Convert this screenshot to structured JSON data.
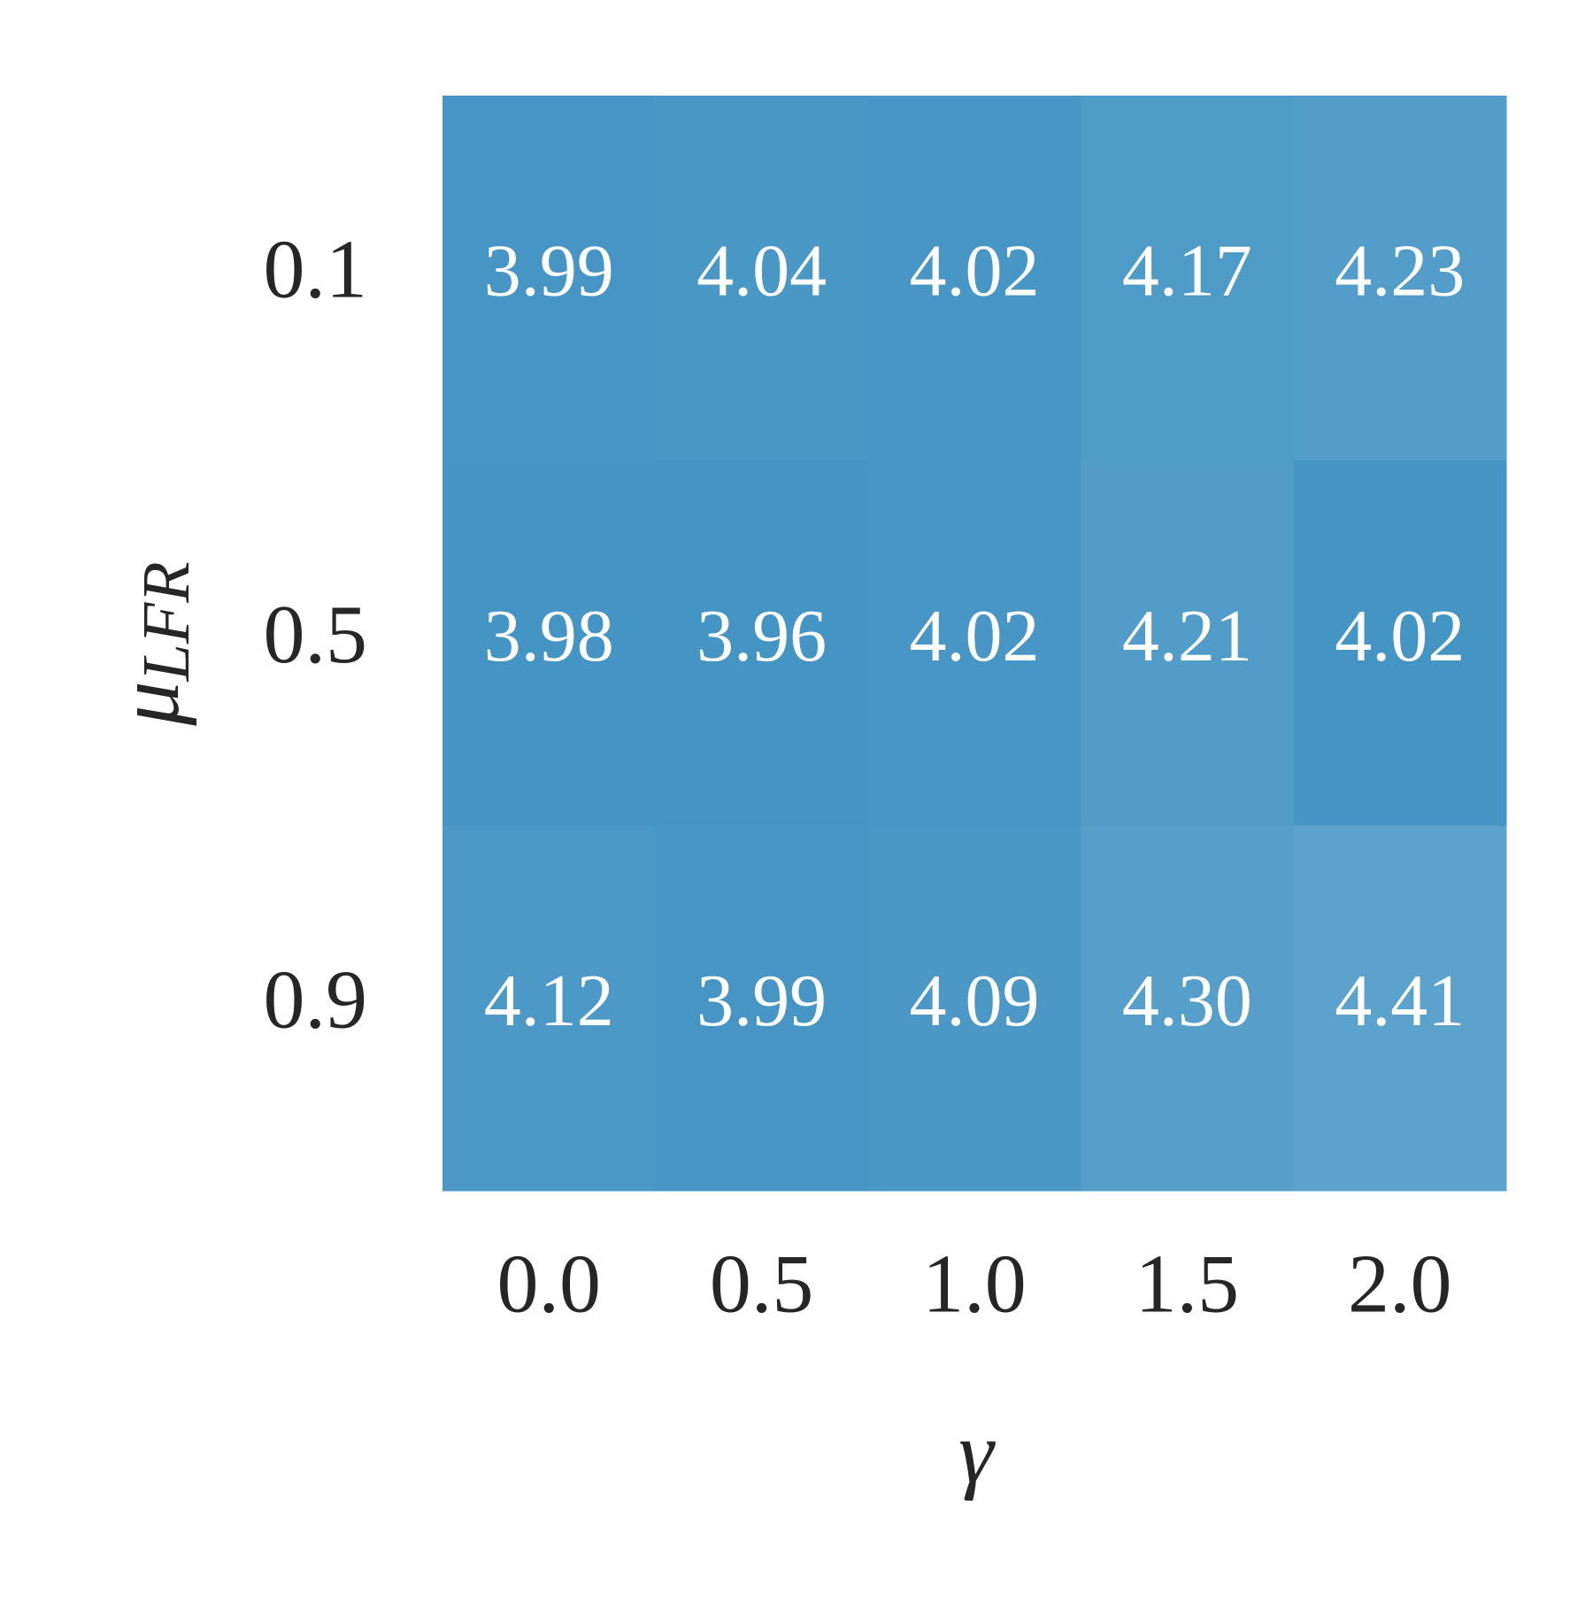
{
  "chart_data": {
    "type": "heatmap",
    "x_label": "γ",
    "y_label": {
      "symbol": "μ",
      "subscript": "LFR"
    },
    "x_categories": [
      "0.0",
      "0.5",
      "1.0",
      "1.5",
      "2.0"
    ],
    "y_categories": [
      "0.1",
      "0.5",
      "0.9"
    ],
    "values": [
      [
        3.99,
        4.04,
        4.02,
        4.17,
        4.23
      ],
      [
        3.98,
        3.96,
        4.02,
        4.21,
        4.02
      ],
      [
        4.12,
        3.99,
        4.09,
        4.3,
        4.41
      ]
    ],
    "value_labels": [
      [
        "3.99",
        "4.04",
        "4.02",
        "4.17",
        "4.23"
      ],
      [
        "3.98",
        "3.96",
        "4.02",
        "4.21",
        "4.02"
      ],
      [
        "4.12",
        "3.99",
        "4.09",
        "4.30",
        "4.41"
      ]
    ],
    "colors": [
      [
        "#4695c5",
        "#4897c5",
        "#4796c5",
        "#4f9bc8",
        "#529dc9"
      ],
      [
        "#4595c4",
        "#4494c4",
        "#4796c5",
        "#519cc8",
        "#4494c4"
      ],
      [
        "#4c99c7",
        "#4695c5",
        "#4b98c6",
        "#559fca",
        "#5ba3cc"
      ]
    ]
  }
}
